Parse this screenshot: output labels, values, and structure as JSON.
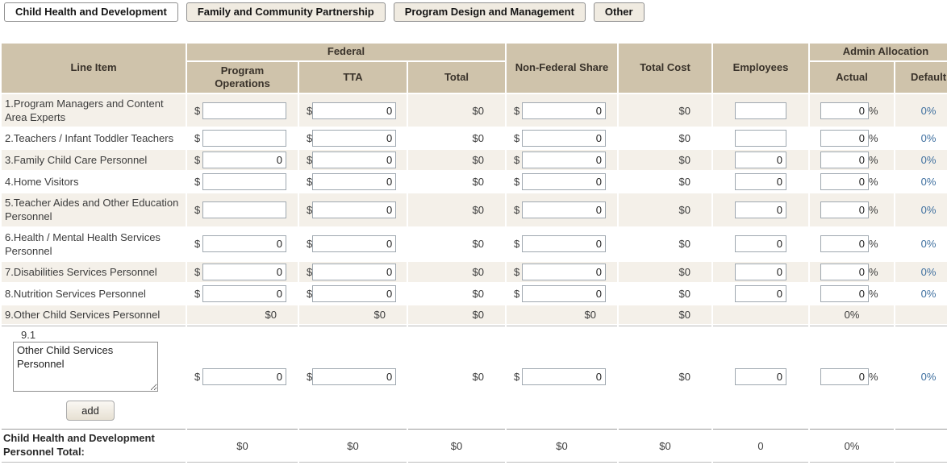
{
  "symbols": {
    "currency": "$",
    "percent": "%"
  },
  "colors": {
    "header_bg": "#cfc3ab",
    "row_alt_bg": "#f4f0e9",
    "link_blue": "#3e6f9f"
  },
  "tabs": [
    {
      "id": "child-health-and-development",
      "label": "Child Health and Development",
      "active": true
    },
    {
      "id": "family-and-community-partnership",
      "label": "Family and Community Partnership",
      "active": false
    },
    {
      "id": "program-design-and-management",
      "label": "Program Design and Management",
      "active": false
    },
    {
      "id": "other",
      "label": "Other",
      "active": false
    }
  ],
  "table": {
    "headers": {
      "line_item": "Line Item",
      "federal": "Federal",
      "program_operations": "Program Operations",
      "tta": "TTA",
      "total": "Total",
      "non_federal_share": "Non-Federal Share",
      "total_cost": "Total Cost",
      "employees": "Employees",
      "admin_allocation": "Admin Allocation",
      "actual": "Actual",
      "default": "Default"
    },
    "rows": [
      {
        "label": "1.Program Managers and Content Area Experts",
        "static": false,
        "po": "",
        "tta": "0",
        "total": "$0",
        "nfs": "0",
        "total_cost": "$0",
        "employees": "",
        "actual": "0",
        "default": "0%"
      },
      {
        "label": "2.Teachers / Infant Toddler Teachers",
        "static": false,
        "po": "",
        "tta": "0",
        "total": "$0",
        "nfs": "0",
        "total_cost": "$0",
        "employees": "",
        "actual": "0",
        "default": "0%"
      },
      {
        "label": "3.Family Child Care Personnel",
        "static": false,
        "po": "0",
        "tta": "0",
        "total": "$0",
        "nfs": "0",
        "total_cost": "$0",
        "employees": "0",
        "actual": "0",
        "default": "0%"
      },
      {
        "label": "4.Home Visitors",
        "static": false,
        "po": "",
        "tta": "0",
        "total": "$0",
        "nfs": "0",
        "total_cost": "$0",
        "employees": "0",
        "actual": "0",
        "default": "0%"
      },
      {
        "label": "5.Teacher Aides and Other Education Personnel",
        "static": false,
        "po": "",
        "tta": "0",
        "total": "$0",
        "nfs": "0",
        "total_cost": "$0",
        "employees": "0",
        "actual": "0",
        "default": "0%"
      },
      {
        "label": "6.Health / Mental Health Services Personnel",
        "static": false,
        "po": "0",
        "tta": "0",
        "total": "$0",
        "nfs": "0",
        "total_cost": "$0",
        "employees": "0",
        "actual": "0",
        "default": "0%"
      },
      {
        "label": "7.Disabilities Services Personnel",
        "static": false,
        "po": "0",
        "tta": "0",
        "total": "$0",
        "nfs": "0",
        "total_cost": "$0",
        "employees": "0",
        "actual": "0",
        "default": "0%"
      },
      {
        "label": "8.Nutrition Services Personnel",
        "static": false,
        "po": "0",
        "tta": "0",
        "total": "$0",
        "nfs": "0",
        "total_cost": "$0",
        "employees": "0",
        "actual": "0",
        "default": "0%"
      },
      {
        "label": "9.Other Child Services Personnel",
        "static": true,
        "po": "$0",
        "tta": "$0",
        "total": "$0",
        "nfs": "$0",
        "total_cost": "$0",
        "employees": "",
        "actual": "0%",
        "default": ""
      }
    ],
    "sub_row": {
      "number": "9.1",
      "description": "Other Child Services Personnel",
      "po": "0",
      "tta": "0",
      "total": "$0",
      "nfs": "0",
      "total_cost": "$0",
      "employees": "0",
      "actual": "0",
      "default": "0%",
      "add_button_label": "add"
    },
    "total_row": {
      "label": "Child Health and Development Personnel Total:",
      "program_operations": "$0",
      "tta": "$0",
      "total": "$0",
      "non_federal_share": "$0",
      "total_cost": "$0",
      "employees": "0",
      "admin_actual": "0%",
      "admin_default": ""
    }
  }
}
